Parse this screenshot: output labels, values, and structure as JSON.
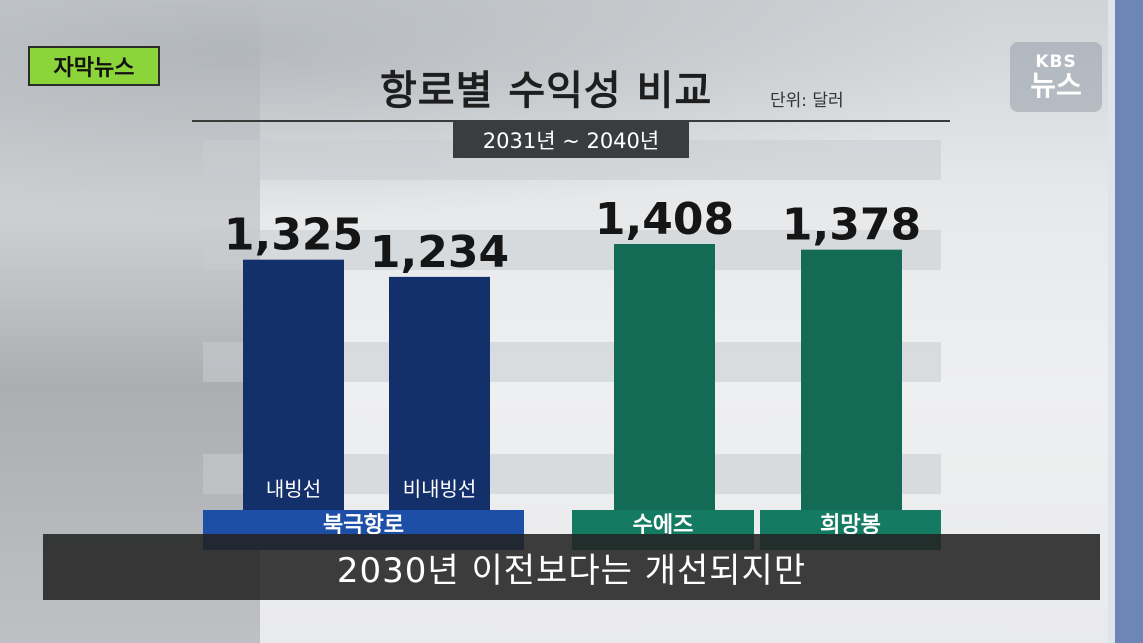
{
  "badge": {
    "label": "자막뉴스"
  },
  "logo": {
    "top": "KBS",
    "bottom": "뉴스"
  },
  "title": "항로별 수익성 비교",
  "unit": "단위: 달러",
  "period": "2031년 ~ 2040년",
  "subtitle": "2030년 이전보다는 개선되지만",
  "colors": {
    "navy": "#14306a",
    "green": "#136b55",
    "navy_label": "#1d4fa6",
    "green_label": "#157a62"
  },
  "chart_data": {
    "type": "bar",
    "title": "항로별 수익성 비교",
    "unit": "단위: 달러",
    "period": "2031년 ~ 2040년",
    "categories": [
      "내빙선",
      "비내빙선",
      "",
      ""
    ],
    "values": [
      1325,
      1234,
      1408,
      1378
    ],
    "value_labels": [
      "1,325",
      "1,234",
      "1,408",
      "1,378"
    ],
    "groups": [
      {
        "name": "북극항로",
        "bars": [
          0,
          1
        ]
      },
      {
        "name": "수에즈",
        "bars": [
          2
        ]
      },
      {
        "name": "희망봉",
        "bars": [
          3
        ]
      }
    ],
    "ylim": [
      0,
      1500
    ],
    "grid": false
  }
}
